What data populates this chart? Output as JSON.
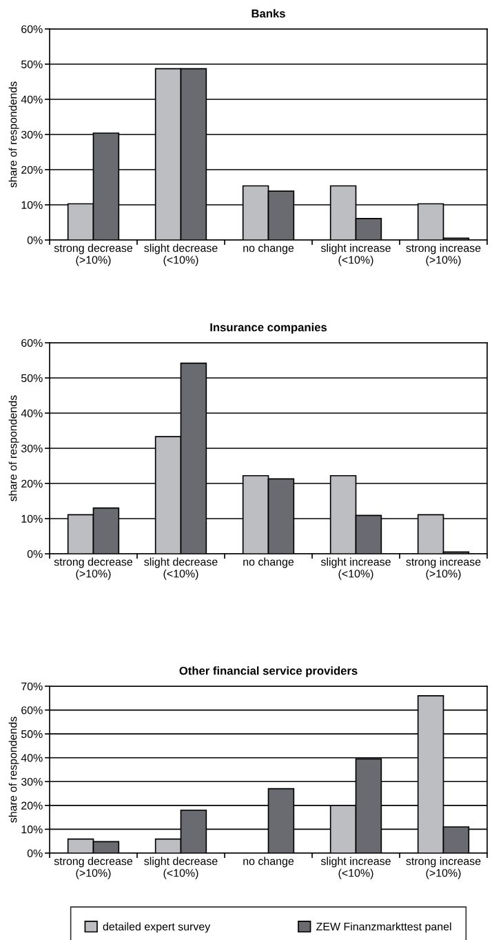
{
  "chart_data": [
    {
      "type": "bar",
      "title": "Banks",
      "ylabel": "share of respondends",
      "categories": [
        "strong decrease\n(>10%)",
        "slight decrease\n(<10%)",
        "no change",
        "slight increase\n(<10%)",
        "strong increase\n(>10%)"
      ],
      "series": [
        {
          "color": "#bdbec2",
          "values": [
            10.3,
            48.7,
            15.4,
            15.4,
            10.3
          ]
        },
        {
          "color": "#6a6b70",
          "values": [
            30.4,
            48.7,
            13.9,
            6.1,
            0.5
          ]
        }
      ],
      "ylim": [
        0,
        60
      ],
      "yticks": [
        {
          "value": 0,
          "label": "0%"
        },
        {
          "value": 10,
          "label": "10%"
        },
        {
          "value": 20,
          "label": "20%"
        },
        {
          "value": 30,
          "label": "30%"
        },
        {
          "value": 40,
          "label": "40%"
        },
        {
          "value": 50,
          "label": "50%"
        },
        {
          "value": 60,
          "label": "60%"
        }
      ],
      "grid": "y",
      "legend": false
    },
    {
      "type": "bar",
      "title": "Insurance companies",
      "ylabel": "share of respondends",
      "categories": [
        "strong decrease\n(>10%)",
        "slight decrease\n(<10%)",
        "no change",
        "slight increase\n(<10%)",
        "strong increase\n(>10%)"
      ],
      "series": [
        {
          "color": "#bdbec2",
          "values": [
            11.1,
            33.3,
            22.2,
            22.2,
            11.1
          ]
        },
        {
          "color": "#6a6b70",
          "values": [
            13.0,
            54.2,
            21.3,
            10.9,
            0.5
          ]
        }
      ],
      "ylim": [
        0,
        60
      ],
      "yticks": [
        {
          "value": 0,
          "label": "0%"
        },
        {
          "value": 10,
          "label": "10%"
        },
        {
          "value": 20,
          "label": "20%"
        },
        {
          "value": 30,
          "label": "30%"
        },
        {
          "value": 40,
          "label": "40%"
        },
        {
          "value": 50,
          "label": "50%"
        },
        {
          "value": 60,
          "label": "60%"
        }
      ],
      "grid": "y",
      "legend": false
    },
    {
      "type": "bar",
      "title": "Other financial service providers",
      "ylabel": "share of respondends",
      "categories": [
        "strong decrease\n(>10%)",
        "slight decrease\n(<10%)",
        "no change",
        "slight increase\n(<10%)",
        "strong increase\n(>10%)"
      ],
      "series": [
        {
          "name": "detailed expert survey",
          "color": "#bdbec2",
          "values": [
            5.9,
            5.9,
            null,
            20,
            66
          ]
        },
        {
          "name": "ZEW Finanzmarkttest panel",
          "color": "#6a6b70",
          "values": [
            4.8,
            18,
            27,
            39.5,
            11
          ]
        }
      ],
      "ylim": [
        0,
        70
      ],
      "yticks": [
        {
          "value": 0,
          "label": "0%"
        },
        {
          "value": 10,
          "label": "10%"
        },
        {
          "value": 20,
          "label": "20%"
        },
        {
          "value": 30,
          "label": "30%"
        },
        {
          "value": 40,
          "label": "40%"
        },
        {
          "value": 50,
          "label": "50%"
        },
        {
          "value": 60,
          "label": "60%"
        },
        {
          "value": 70,
          "label": "70%"
        }
      ],
      "grid": "y",
      "legend": "bottom"
    }
  ]
}
